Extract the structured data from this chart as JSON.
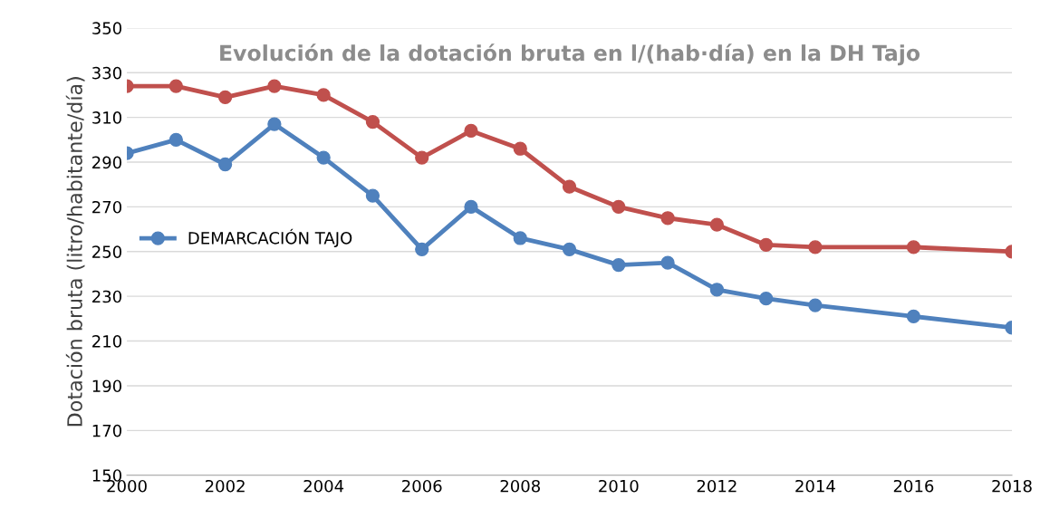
{
  "chart_data": {
    "type": "line",
    "title": "Evolución de la dotación bruta en l/(hab·día) en la DH Tajo",
    "ylabel": "Dotación bruta (litro/habitante/día)",
    "x": [
      2000,
      2001,
      2002,
      2003,
      2004,
      2005,
      2006,
      2007,
      2008,
      2009,
      2010,
      2011,
      2012,
      2013,
      2014,
      2016,
      2018
    ],
    "series": [
      {
        "color": "#c0504d",
        "values": [
          324,
          324,
          319,
          324,
          320,
          308,
          292,
          304,
          296,
          279,
          270,
          265,
          262,
          253,
          252,
          252,
          250
        ]
      },
      {
        "name": "DEMARCACIÓN TAJO",
        "color": "#4f81bd",
        "values": [
          294,
          300,
          289,
          307,
          292,
          275,
          251,
          270,
          256,
          251,
          244,
          245,
          233,
          229,
          226,
          221,
          216
        ]
      }
    ],
    "xlim": [
      2000,
      2018
    ],
    "xticks": [
      2000,
      2002,
      2004,
      2006,
      2008,
      2010,
      2012,
      2014,
      2016,
      2018
    ],
    "ylim": [
      150,
      350
    ],
    "yticks": [
      150,
      170,
      190,
      210,
      230,
      250,
      270,
      290,
      310,
      330,
      350
    ],
    "grid": "y",
    "legend": "left",
    "marker": "circle",
    "line_style": "solid"
  }
}
